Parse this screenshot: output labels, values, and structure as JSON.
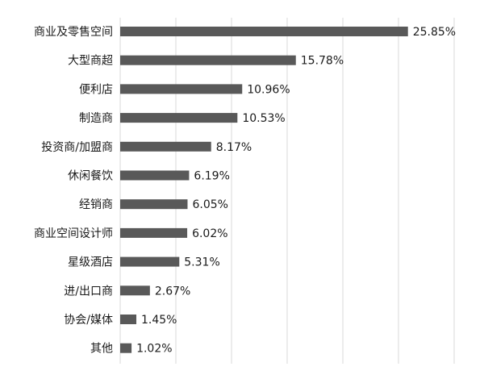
{
  "chart_data": {
    "type": "bar",
    "orientation": "horizontal",
    "title": "",
    "xlabel": "",
    "ylabel": "",
    "categories": [
      "商业及零售空间",
      "大型商超",
      "便利店",
      "制造商",
      "投资商/加盟商",
      "休闲餐饮",
      "经销商",
      "商业空间设计师",
      "星级酒店",
      "进/出口商",
      "协会/媒体",
      "其他"
    ],
    "values": [
      25.85,
      15.78,
      10.96,
      10.53,
      8.17,
      6.19,
      6.05,
      6.02,
      5.31,
      2.67,
      1.45,
      1.02
    ],
    "value_labels": [
      "25.85%",
      "15.78%",
      "10.96%",
      "10.53%",
      "8.17%",
      "6.19%",
      "6.05%",
      "6.02%",
      "5.31%",
      "2.67%",
      "1.45%",
      "1.02%"
    ],
    "unit": "%",
    "xlim": [
      0,
      30
    ],
    "grid": true,
    "grid_step": 5,
    "legend": "none",
    "bar_color": "#595959",
    "grid_color": "#d9d9d9"
  }
}
